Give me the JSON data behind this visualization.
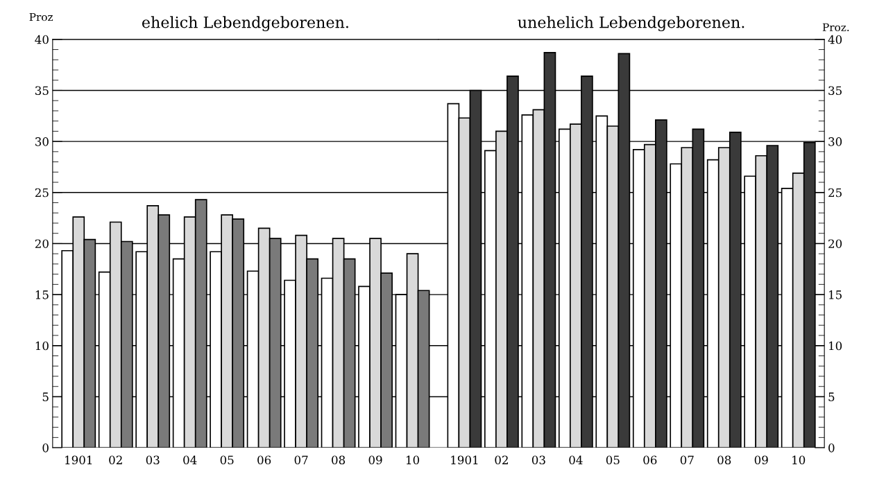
{
  "chart_data": [
    {
      "type": "bar",
      "title": "ehelich Lebendgeborenen.",
      "ylabel": "Proz",
      "categories": [
        "1901",
        "02",
        "03",
        "04",
        "05",
        "06",
        "07",
        "08",
        "09",
        "10"
      ],
      "ylim": [
        0,
        40
      ],
      "yticks": [
        0,
        5,
        10,
        15,
        20,
        25,
        30,
        35,
        40
      ],
      "grid": "y",
      "series": [
        {
          "color": "#ffffff",
          "values": [
            19.3,
            17.2,
            19.2,
            18.5,
            19.2,
            17.3,
            16.4,
            16.6,
            15.8,
            15.0
          ]
        },
        {
          "color": "#d9d9d9",
          "values": [
            22.6,
            22.1,
            23.7,
            22.6,
            22.8,
            21.5,
            20.8,
            20.5,
            20.5,
            19.0
          ]
        },
        {
          "color": "#7a7a7a",
          "values": [
            20.4,
            20.2,
            22.8,
            24.3,
            22.4,
            20.5,
            18.5,
            18.5,
            17.1,
            15.4
          ]
        }
      ]
    },
    {
      "type": "bar",
      "title": "unehelich Lebendgeborenen.",
      "y2label": "Proz.",
      "categories": [
        "1901",
        "02",
        "03",
        "04",
        "05",
        "06",
        "07",
        "08",
        "09",
        "10"
      ],
      "y2lim": [
        0,
        40
      ],
      "y2ticks": [
        0,
        5,
        10,
        15,
        20,
        25,
        30,
        35,
        40
      ],
      "grid": "y",
      "series": [
        {
          "color": "#ffffff",
          "axis": "y2",
          "values": [
            33.7,
            29.1,
            32.6,
            31.2,
            32.5,
            29.2,
            27.8,
            28.2,
            26.6,
            25.4
          ]
        },
        {
          "color": "#d9d9d9",
          "axis": "y2",
          "values": [
            32.3,
            31.0,
            33.1,
            31.7,
            31.5,
            29.7,
            29.4,
            29.4,
            28.6,
            26.9
          ]
        },
        {
          "color": "#3a3a3a",
          "axis": "y2",
          "values": [
            35.0,
            36.4,
            38.7,
            36.4,
            38.6,
            32.1,
            31.2,
            30.9,
            29.6,
            29.9
          ]
        }
      ]
    }
  ]
}
